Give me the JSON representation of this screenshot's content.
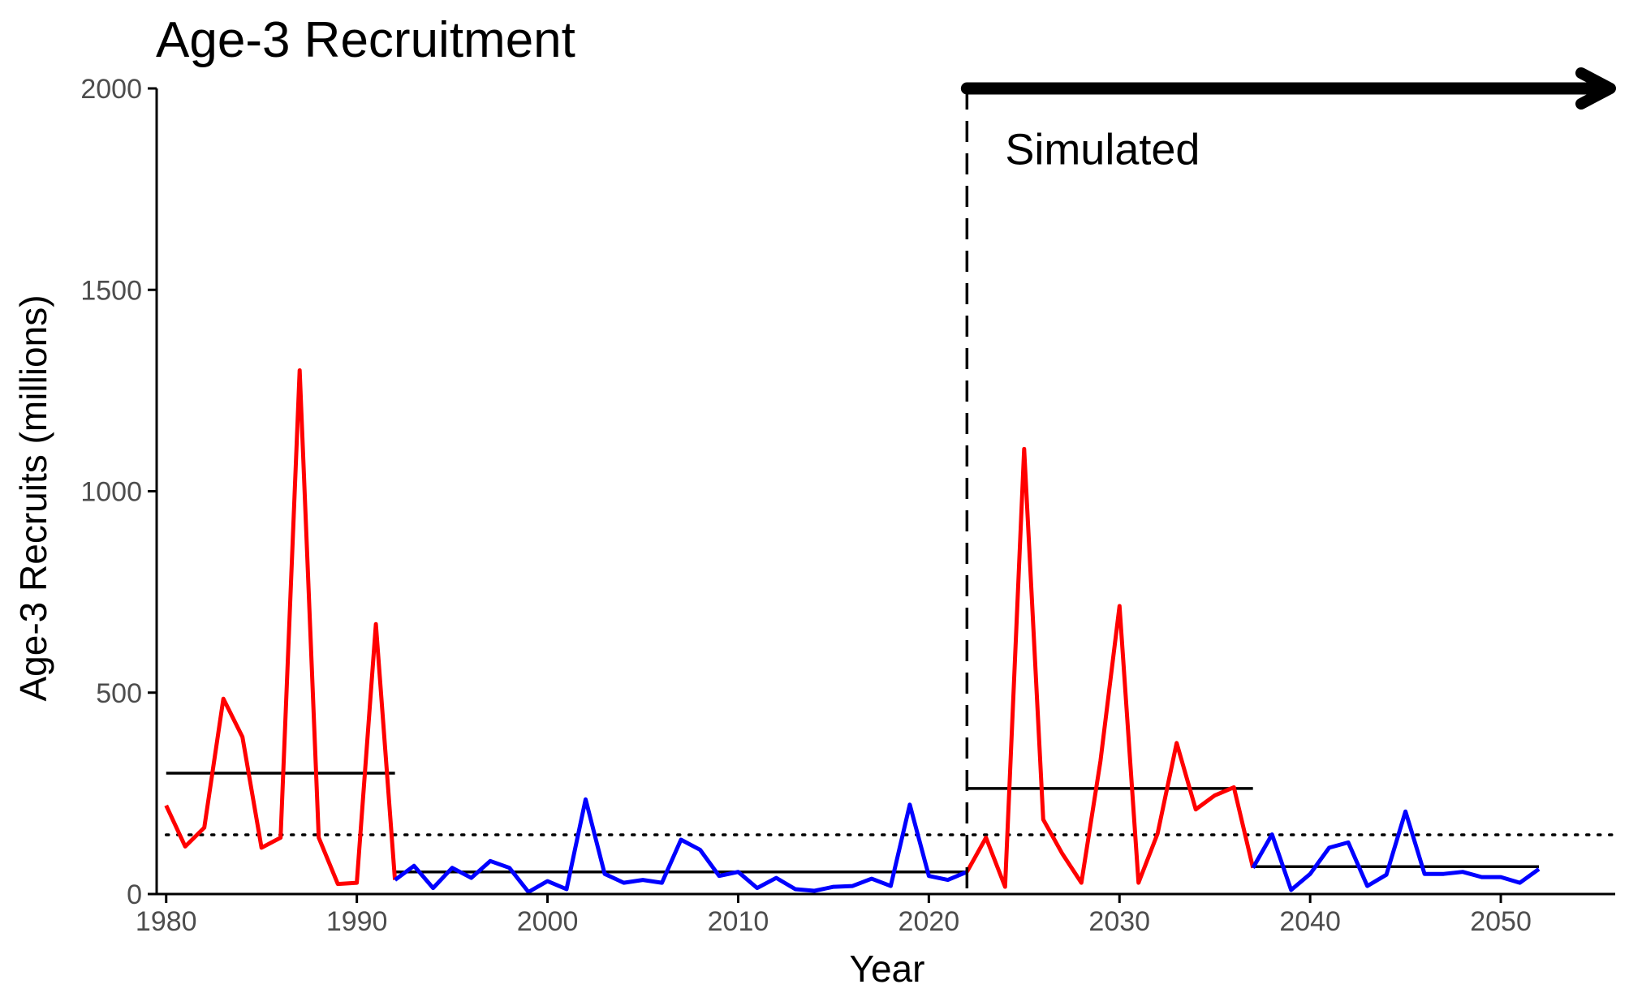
{
  "chart_data": {
    "type": "line",
    "title": "Age-3 Recruitment",
    "xlabel": "Year",
    "ylabel": "Age-3 Recruits (millions)",
    "xlim": [
      1979.5,
      2056
    ],
    "ylim": [
      0,
      2000
    ],
    "x_ticks": [
      1980,
      1990,
      2000,
      2010,
      2020,
      2030,
      2040,
      2050
    ],
    "y_ticks": [
      0,
      500,
      1000,
      1500,
      2000
    ],
    "grid": false,
    "legend": "none",
    "annotations": [
      {
        "text": "Simulated",
        "x": 2024,
        "y": 1850
      }
    ],
    "simulation_start": 2022,
    "arrow": {
      "from_x": 2022,
      "to_x": 2056,
      "y": 2000
    },
    "reference_line": {
      "style": "dotted",
      "y": 147,
      "x_from": 1980,
      "x_to": 2056
    },
    "period_means": [
      {
        "x_from": 1980,
        "x_to": 1992,
        "y": 300
      },
      {
        "x_from": 1992,
        "x_to": 2022,
        "y": 55
      },
      {
        "x_from": 2022,
        "x_to": 2037,
        "y": 262
      },
      {
        "x_from": 2037,
        "x_to": 2052,
        "y": 68
      }
    ],
    "series": [
      {
        "color": "#ff0000",
        "x": [
          1980,
          1981,
          1982,
          1983,
          1984,
          1985,
          1986,
          1987,
          1988,
          1989,
          1990,
          1991,
          1992
        ],
        "values": [
          220,
          118,
          165,
          485,
          390,
          115,
          140,
          1300,
          140,
          25,
          28,
          670,
          35
        ]
      },
      {
        "color": "#0000ff",
        "x": [
          1992,
          1993,
          1994,
          1995,
          1996,
          1997,
          1998,
          1999,
          2000,
          2001,
          2002,
          2003,
          2004,
          2005,
          2006,
          2007,
          2008,
          2009,
          2010,
          2011,
          2012,
          2013,
          2014,
          2015,
          2016,
          2017,
          2018,
          2019,
          2020,
          2021,
          2022
        ],
        "values": [
          35,
          70,
          15,
          65,
          40,
          82,
          65,
          5,
          32,
          12,
          235,
          50,
          28,
          35,
          28,
          135,
          110,
          45,
          55,
          15,
          40,
          12,
          8,
          18,
          20,
          38,
          20,
          222,
          45,
          35,
          55
        ]
      },
      {
        "color": "#ff0000",
        "x": [
          2022,
          2023,
          2024,
          2025,
          2026,
          2027,
          2028,
          2029,
          2030,
          2031,
          2032,
          2033,
          2034,
          2035,
          2036,
          2037
        ],
        "values": [
          55,
          140,
          18,
          1105,
          185,
          100,
          28,
          330,
          715,
          28,
          150,
          375,
          210,
          245,
          265,
          65
        ]
      },
      {
        "color": "#0000ff",
        "x": [
          2037,
          2038,
          2039,
          2040,
          2041,
          2042,
          2043,
          2044,
          2045,
          2046,
          2047,
          2048,
          2049,
          2050,
          2051,
          2052
        ],
        "values": [
          65,
          148,
          10,
          50,
          115,
          128,
          20,
          48,
          205,
          50,
          50,
          55,
          42,
          42,
          28,
          62
        ]
      }
    ]
  }
}
